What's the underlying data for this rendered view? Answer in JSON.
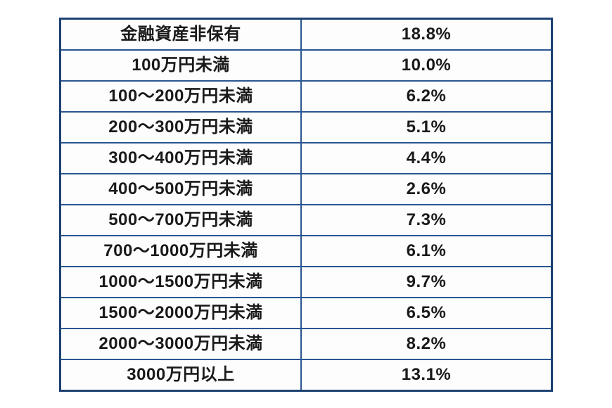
{
  "chart_data": {
    "type": "table",
    "categories": [
      "金融資産非保有",
      "100万円未満",
      "100〜200万円未満",
      "200〜300万円未満",
      "300〜400万円未満",
      "400〜500万円未満",
      "500〜700万円未満",
      "700〜1000万円未満",
      "1000〜1500万円未満",
      "1500〜2000万円未満",
      "2000〜3000万円未満",
      "3000万円以上"
    ],
    "values": [
      18.8,
      10.0,
      6.2,
      5.1,
      4.4,
      2.6,
      7.3,
      6.1,
      9.7,
      6.5,
      8.2,
      13.1
    ],
    "unit": "%",
    "title": ""
  },
  "table": {
    "rows": [
      {
        "label": "金融資産非保有",
        "value": "18.8%"
      },
      {
        "label": "100万円未満",
        "value": "10.0%"
      },
      {
        "label": "100〜200万円未満",
        "value": "6.2%"
      },
      {
        "label": "200〜300万円未満",
        "value": "5.1%"
      },
      {
        "label": "300〜400万円未満",
        "value": "4.4%"
      },
      {
        "label": "400〜500万円未満",
        "value": "2.6%"
      },
      {
        "label": "500〜700万円未満",
        "value": "7.3%"
      },
      {
        "label": "700〜1000万円未満",
        "value": "6.1%"
      },
      {
        "label": "1000〜1500万円未満",
        "value": "9.7%"
      },
      {
        "label": "1500〜2000万円未満",
        "value": "6.5%"
      },
      {
        "label": "2000〜3000万円未満",
        "value": "8.2%"
      },
      {
        "label": "3000万円以上",
        "value": "13.1%"
      }
    ]
  },
  "colors": {
    "border_outer": "#1d4273",
    "border_inner": "#2a5691",
    "text": "#1a1a1a",
    "cell_bg": "#fdfdfe",
    "page_bg": "#ffffff"
  }
}
